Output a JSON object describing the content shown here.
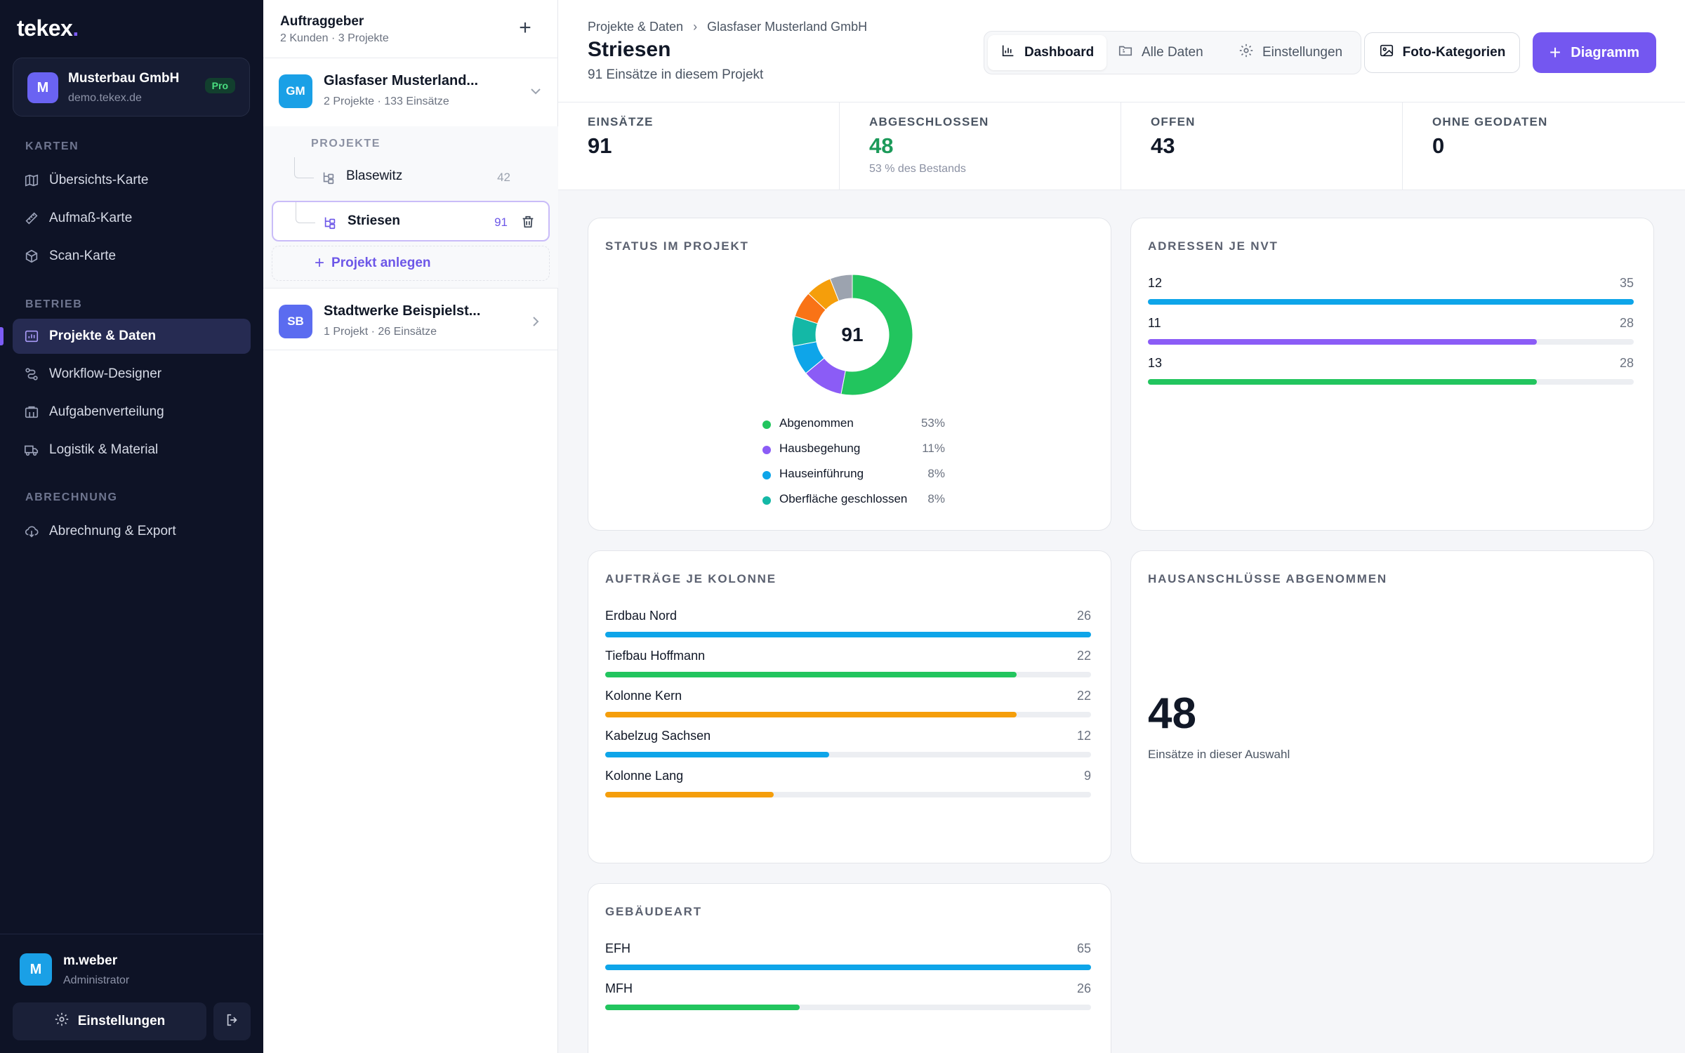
{
  "sidebar": {
    "logo": "tekex",
    "logo_dot": ".",
    "org": {
      "initial": "M",
      "name": "Musterbau GmbH",
      "domain": "demo.tekex.de",
      "badge": "Pro"
    },
    "sections": [
      {
        "label": "KARTEN"
      },
      {
        "label": "BETRIEB"
      },
      {
        "label": "ABRECHNUNG"
      }
    ],
    "items": [
      {
        "label": "Übersichts-Karte",
        "icon": "map-icon"
      },
      {
        "label": "Aufmaß-Karte",
        "icon": "ruler-icon"
      },
      {
        "label": "Scan-Karte",
        "icon": "cube-icon"
      },
      {
        "label": "Projekte & Daten",
        "icon": "chart-icon",
        "active": true
      },
      {
        "label": "Workflow-Designer",
        "icon": "workflow-icon"
      },
      {
        "label": "Aufgabenverteilung",
        "icon": "building-icon"
      },
      {
        "label": "Logistik & Material",
        "icon": "truck-icon"
      },
      {
        "label": "Abrechnung & Export",
        "icon": "cloud-download-icon"
      }
    ],
    "user": {
      "initial": "M",
      "name": "m.weber",
      "role": "Administrator"
    },
    "settings_label": "Einstellungen"
  },
  "clients": {
    "title": "Auftraggeber",
    "subtitle": "2 Kunden · 3 Projekte",
    "list": [
      {
        "initials": "GM",
        "name": "Glasfaser Musterland...",
        "meta": "2 Projekte · 133 Einsätze",
        "color": "#1aa0e6",
        "expanded": true
      },
      {
        "initials": "SB",
        "name": "Stadtwerke Beispielst...",
        "meta": "1 Projekt · 26 Einsätze",
        "color": "#5b6cf0",
        "expanded": false
      }
    ],
    "projects_label": "PROJEKTE",
    "projects": [
      {
        "name": "Blasewitz",
        "count": "42"
      },
      {
        "name": "Striesen",
        "count": "91",
        "selected": true
      }
    ],
    "add_project_label": "Projekt anlegen"
  },
  "header": {
    "breadcrumb": [
      "Projekte & Daten",
      "Glasfaser Musterland GmbH"
    ],
    "title": "Striesen",
    "subtitle": "91 Einsätze in diesem Projekt",
    "tabs": [
      {
        "label": "Dashboard",
        "icon": "bar-chart-icon",
        "active": true
      },
      {
        "label": "Alle Daten",
        "icon": "folder-icon"
      },
      {
        "label": "Einstellungen",
        "icon": "gear-icon"
      }
    ],
    "photo_button": "Foto-Kategorien",
    "diagram_button": "Diagramm"
  },
  "kpis": [
    {
      "label": "EINSÄTZE",
      "value": "91"
    },
    {
      "label": "ABGESCHLOSSEN",
      "value": "48",
      "note": "53 % des Bestands",
      "accent": "#1c9a5a"
    },
    {
      "label": "OFFEN",
      "value": "43"
    },
    {
      "label": "OHNE GEODATEN",
      "value": "0"
    }
  ],
  "status_card": {
    "title": "STATUS IM PROJEKT",
    "total": "91",
    "legend": [
      {
        "label": "Abgenommen",
        "pct": "53%",
        "color": "#22c55e"
      },
      {
        "label": "Hausbegehung",
        "pct": "11%",
        "color": "#8b5cf6"
      },
      {
        "label": "Hauseinführung",
        "pct": "8%",
        "color": "#0ea5e9"
      },
      {
        "label": "Oberfläche geschlossen",
        "pct": "8%",
        "color": "#14b8a6"
      }
    ]
  },
  "chart_data": [
    {
      "type": "pie",
      "title": "STATUS IM PROJEKT",
      "center_label": "91",
      "categories": [
        "Abgenommen",
        "Hausbegehung",
        "Hauseinführung",
        "Oberfläche geschlossen",
        "",
        "",
        ""
      ],
      "values": [
        53,
        11,
        8,
        8,
        7,
        7,
        6
      ],
      "colors": [
        "#22c55e",
        "#8b5cf6",
        "#0ea5e9",
        "#14b8a6",
        "#f97316",
        "#f59e0b",
        "#9ca3af"
      ]
    },
    {
      "type": "bar",
      "title": "ADRESSEN JE NVT",
      "categories": [
        "12",
        "11",
        "13"
      ],
      "values": [
        35,
        28,
        28
      ],
      "colors": [
        "#0ea5e9",
        "#8b5cf6",
        "#22c55e"
      ]
    },
    {
      "type": "bar",
      "title": "AUFTRÄGE JE KOLONNE",
      "categories": [
        "Erdbau Nord",
        "Tiefbau Hoffmann",
        "Kolonne Kern",
        "Kabelzug Sachsen",
        "Kolonne Lang"
      ],
      "values": [
        26,
        22,
        22,
        12,
        9
      ],
      "colors": [
        "#0ea5e9",
        "#22c55e",
        "#f59e0b",
        "#0ea5e9",
        "#f59e0b"
      ]
    },
    {
      "type": "bar",
      "title": "GEBÄUDEART",
      "categories": [
        "EFH",
        "MFH"
      ],
      "values": [
        65,
        26
      ],
      "colors": [
        "#0ea5e9",
        "#22c55e"
      ]
    }
  ],
  "nvt_card": {
    "title": "ADRESSEN JE NVT"
  },
  "kolonne_card": {
    "title": "AUFTRÄGE JE KOLONNE"
  },
  "hausanschluss_card": {
    "title": "HAUSANSCHLÜSSE ABGENOMMEN",
    "value": "48",
    "subtitle": "Einsätze in dieser Auswahl"
  },
  "gebaeude_card": {
    "title": "GEBÄUDEART"
  }
}
